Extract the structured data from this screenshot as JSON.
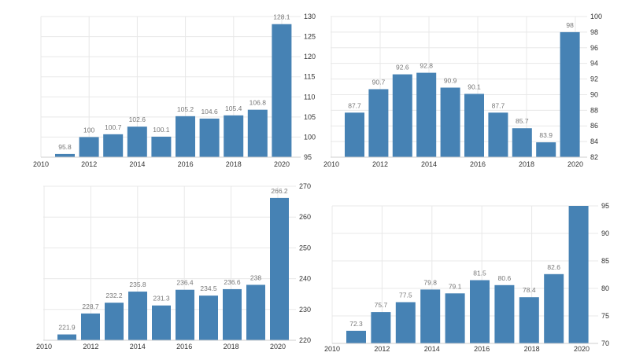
{
  "colors": {
    "bar": "#4682b4",
    "grid": "#e8e8e8",
    "tick_text": "#333333",
    "label_text": "#777777"
  },
  "chart_data": [
    {
      "type": "bar",
      "title": "",
      "x_ticks": [
        "2010",
        "2012",
        "2014",
        "2016",
        "2018",
        "2020"
      ],
      "categories": [
        "2011",
        "2012",
        "2013",
        "2014",
        "2015",
        "2016",
        "2017",
        "2018",
        "2019",
        "2020"
      ],
      "values": [
        95.8,
        100,
        100.7,
        102.6,
        100.1,
        105.2,
        104.6,
        105.4,
        106.8,
        128.1
      ],
      "value_labels": [
        "95.8",
        "100",
        "100.7",
        "102.6",
        "100.1",
        "105.2",
        "104.6",
        "105.4",
        "106.8",
        "128.1"
      ],
      "ylim": [
        95,
        130
      ],
      "y_ticks": [
        95,
        100,
        105,
        110,
        115,
        120,
        125,
        130
      ],
      "grid": true,
      "y_axis_side": "right"
    },
    {
      "type": "bar",
      "title": "",
      "x_ticks": [
        "2010",
        "2012",
        "2014",
        "2016",
        "2018",
        "2020"
      ],
      "categories": [
        "2011",
        "2012",
        "2013",
        "2014",
        "2015",
        "2016",
        "2017",
        "2018",
        "2019",
        "2020"
      ],
      "values": [
        87.7,
        90.7,
        92.6,
        92.8,
        90.9,
        90.1,
        87.7,
        85.7,
        83.9,
        98
      ],
      "value_labels": [
        "87.7",
        "90.7",
        "92.6",
        "92.8",
        "90.9",
        "90.1",
        "87.7",
        "85.7",
        "83.9",
        "98"
      ],
      "ylim": [
        82,
        100
      ],
      "y_ticks": [
        82,
        84,
        86,
        88,
        90,
        92,
        94,
        96,
        98,
        100
      ],
      "grid": true,
      "y_axis_side": "right"
    },
    {
      "type": "bar",
      "title": "",
      "x_ticks": [
        "2010",
        "2012",
        "2014",
        "2016",
        "2018",
        "2020"
      ],
      "categories": [
        "2011",
        "2012",
        "2013",
        "2014",
        "2015",
        "2016",
        "2017",
        "2018",
        "2019",
        "2020"
      ],
      "values": [
        221.9,
        228.7,
        232.2,
        235.8,
        231.3,
        236.4,
        234.5,
        236.6,
        238,
        266.2
      ],
      "value_labels": [
        "221.9",
        "228.7",
        "232.2",
        "235.8",
        "231.3",
        "236.4",
        "234.5",
        "236.6",
        "238",
        "266.2"
      ],
      "ylim": [
        220,
        270
      ],
      "y_ticks": [
        220,
        230,
        240,
        250,
        260,
        270
      ],
      "grid": true,
      "y_axis_side": "right"
    },
    {
      "type": "bar",
      "title": "",
      "x_ticks": [
        "2010",
        "2012",
        "2014",
        "2016",
        "2018",
        "2020"
      ],
      "categories": [
        "2011",
        "2012",
        "2013",
        "2014",
        "2015",
        "2016",
        "2017",
        "2018",
        "2019",
        "2020"
      ],
      "values": [
        72.3,
        75.7,
        77.5,
        79.8,
        79.1,
        81.5,
        80.6,
        78.4,
        82.6,
        95
      ],
      "value_labels": [
        "72.3",
        "75.7",
        "77.5",
        "79.8",
        "79.1",
        "81.5",
        "80.6",
        "78.4",
        "82.6",
        ""
      ],
      "ylim": [
        70,
        95
      ],
      "y_ticks": [
        70,
        75,
        80,
        85,
        90,
        95
      ],
      "grid": true,
      "y_axis_side": "right"
    }
  ]
}
